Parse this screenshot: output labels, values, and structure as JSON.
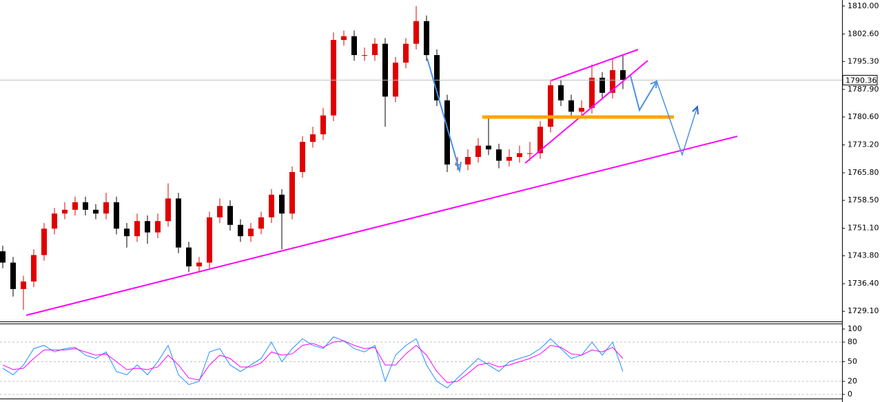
{
  "chart_data": [
    {
      "type": "candlestick",
      "up_color": "#e00000",
      "down_color": "#000000",
      "ylim": [
        1726.4,
        1811.6
      ],
      "yticks": [
        {
          "value": 1810,
          "label": "1810.00"
        },
        {
          "value": 1802.6,
          "label": "1802.60"
        },
        {
          "value": 1795.3,
          "label": "1795.30"
        },
        {
          "value": 1787.9,
          "label": "1787.90"
        },
        {
          "value": 1780.6,
          "label": "1780.60"
        },
        {
          "value": 1773.2,
          "label": "1773.20"
        },
        {
          "value": 1765.8,
          "label": "1765.80"
        },
        {
          "value": 1758.5,
          "label": "1758.50"
        },
        {
          "value": 1751.1,
          "label": "1751.10"
        },
        {
          "value": 1743.8,
          "label": "1743.80"
        },
        {
          "value": 1736.4,
          "label": "1736.40"
        },
        {
          "value": 1729.1,
          "label": "1729.10"
        }
      ],
      "last_price": 1790.36,
      "open": [
        1745,
        1742,
        1735,
        1737,
        1744,
        1751,
        1755,
        1756,
        1758,
        1756,
        1755,
        1758,
        1751,
        1749,
        1753,
        1750,
        1753,
        1759,
        1746,
        1741,
        1742,
        1754,
        1757,
        1752,
        1749,
        1751,
        1754,
        1760,
        1755,
        1766,
        1774,
        1776,
        1781,
        1801,
        1802,
        1797,
        1797,
        1800,
        1786,
        1795,
        1800,
        1806,
        1797,
        1785,
        1768,
        1768,
        1770,
        1773,
        1772,
        1769,
        1770,
        1771,
        1771,
        1778,
        1789,
        1785,
        1782,
        1783,
        1791,
        1787,
        1793
      ],
      "high": [
        1746.5,
        1743.5,
        1738.5,
        1745.5,
        1752.5,
        1756.5,
        1758,
        1759.5,
        1759.5,
        1757.5,
        1760.5,
        1759.5,
        1752.5,
        1755,
        1754.5,
        1755,
        1763,
        1760.5,
        1747.5,
        1743.5,
        1755.5,
        1759,
        1758.5,
        1753.5,
        1752.5,
        1755.5,
        1761.5,
        1761.5,
        1767.5,
        1775.5,
        1778,
        1783,
        1803,
        1803.5,
        1803.5,
        1799,
        1801.5,
        1801.5,
        1796.5,
        1801.5,
        1810,
        1807.5,
        1798.5,
        1786.5,
        1770,
        1772,
        1775,
        1781,
        1773.5,
        1772,
        1773,
        1774,
        1779.5,
        1790.5,
        1790.5,
        1786.5,
        1785,
        1794.5,
        1792.5,
        1796,
        1797
      ],
      "low": [
        1740.5,
        1733,
        1729.5,
        1735.5,
        1742.5,
        1749.5,
        1753.5,
        1754.5,
        1754.5,
        1753.5,
        1753.5,
        1749.5,
        1746,
        1747.5,
        1747,
        1748.5,
        1751.5,
        1744.5,
        1739.5,
        1739.5,
        1740.5,
        1752.5,
        1750.5,
        1747.5,
        1747.5,
        1749.5,
        1752.5,
        1745.5,
        1753.5,
        1764.5,
        1772.5,
        1774.5,
        1779.5,
        1799.5,
        1795.5,
        1795.5,
        1795.5,
        1778,
        1784.5,
        1793.5,
        1798.5,
        1795.5,
        1783.5,
        1766,
        1766.5,
        1766.5,
        1768.5,
        1770.5,
        1767,
        1767.5,
        1768.5,
        1769,
        1769.5,
        1776.5,
        1783.5,
        1780.5,
        1780.5,
        1781.5,
        1785.5,
        1785.5,
        1788
      ],
      "close": [
        1742,
        1735,
        1737,
        1744,
        1751,
        1755,
        1756,
        1758,
        1756,
        1755,
        1758,
        1751,
        1749,
        1753,
        1750,
        1753,
        1759,
        1746,
        1741,
        1742,
        1754,
        1757,
        1752,
        1749,
        1751,
        1754,
        1760,
        1755,
        1766,
        1774,
        1776,
        1781,
        1801,
        1802,
        1797,
        1797,
        1800,
        1786,
        1795,
        1800,
        1806,
        1797,
        1785,
        1768,
        1768,
        1770,
        1773,
        1772,
        1769,
        1770,
        1771,
        1771,
        1778,
        1789,
        1785,
        1782,
        1783,
        1791,
        1787,
        1793,
        1790.36
      ]
    },
    {
      "type": "line",
      "ylim": [
        -7.4,
        108.4
      ],
      "yticks": [
        0,
        20,
        50,
        80,
        100
      ],
      "series": [
        {
          "color": "#1e90ff",
          "values": [
            40,
            30,
            45,
            70,
            75,
            65,
            70,
            72,
            60,
            55,
            65,
            35,
            30,
            45,
            30,
            50,
            75,
            30,
            15,
            20,
            65,
            70,
            45,
            35,
            45,
            55,
            80,
            50,
            70,
            85,
            75,
            70,
            88,
            82,
            70,
            65,
            75,
            20,
            60,
            75,
            85,
            45,
            20,
            10,
            25,
            40,
            55,
            45,
            35,
            50,
            55,
            60,
            70,
            85,
            70,
            55,
            60,
            80,
            60,
            80,
            35
          ]
        },
        {
          "color": "#ff00ff",
          "values": [
            45,
            38,
            40,
            55,
            68,
            68,
            68,
            70,
            65,
            60,
            62,
            50,
            38,
            40,
            38,
            42,
            60,
            45,
            25,
            22,
            45,
            60,
            55,
            42,
            42,
            48,
            65,
            60,
            62,
            75,
            78,
            72,
            80,
            82,
            75,
            70,
            72,
            45,
            45,
            62,
            75,
            60,
            35,
            18,
            20,
            32,
            45,
            48,
            42,
            45,
            50,
            55,
            62,
            75,
            72,
            62,
            60,
            68,
            65,
            72,
            55
          ]
        }
      ]
    }
  ]
}
